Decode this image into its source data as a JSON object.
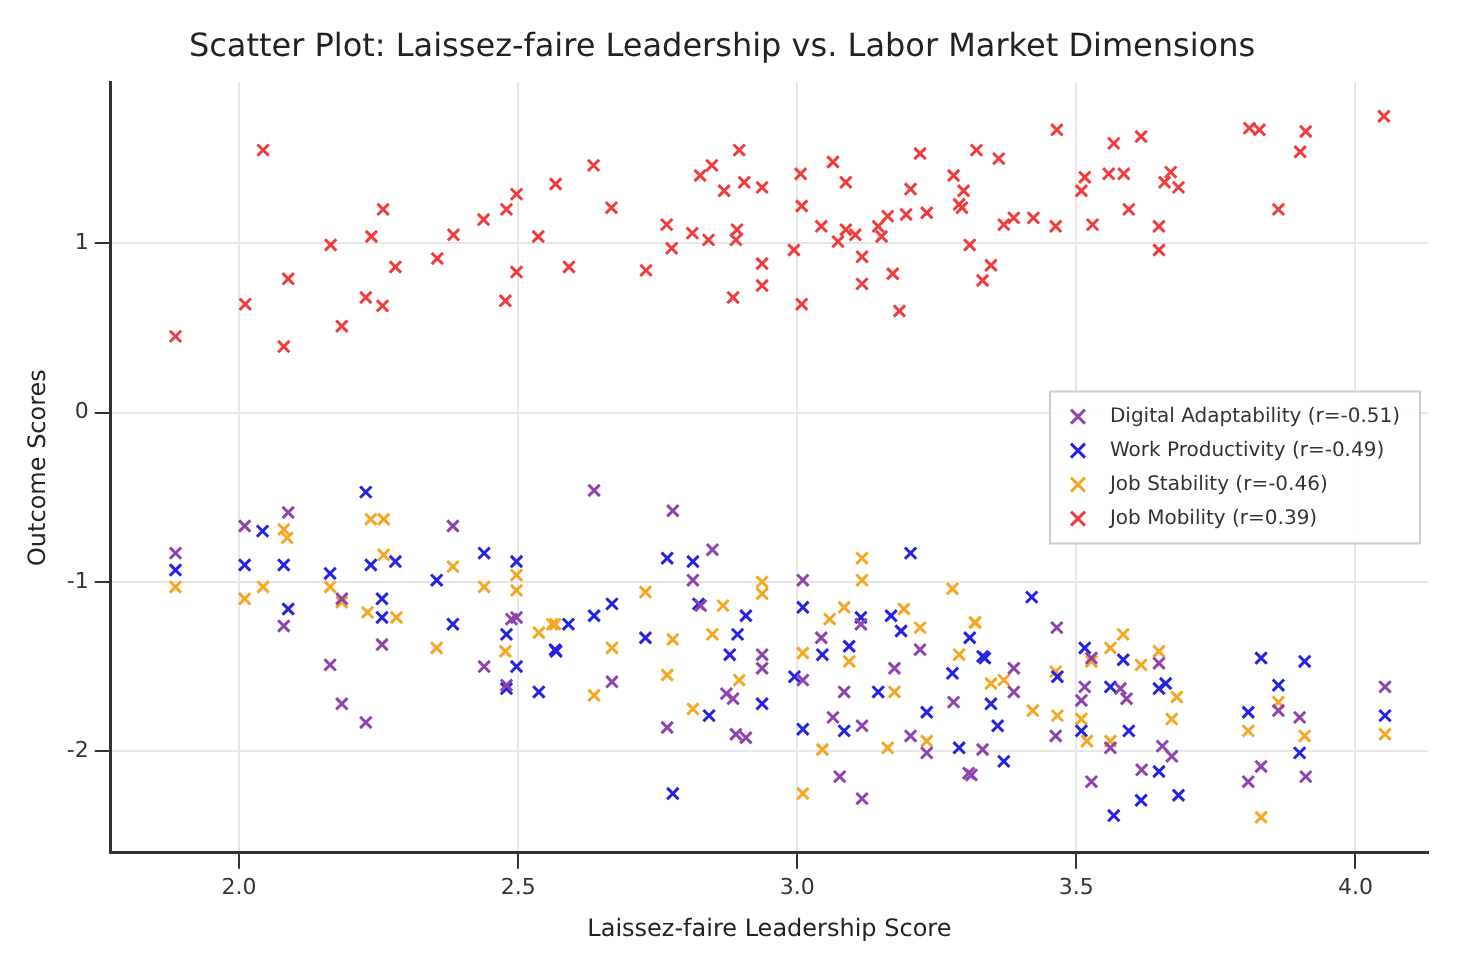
{
  "chart_data": {
    "type": "scatter",
    "title": "Scatter Plot: Laissez-faire Leadership vs. Labor Market Dimensions",
    "xlabel": "Laissez-faire Leadership Score",
    "ylabel": "Outcome Scores",
    "xlim": [
      1.77,
      4.13
    ],
    "ylim": [
      -2.6,
      1.95
    ],
    "xticks": [
      {
        "value": 2,
        "label": "2.0"
      },
      {
        "value": 2.5,
        "label": "2.5"
      },
      {
        "value": 3,
        "label": "3.0"
      },
      {
        "value": 3.5,
        "label": "3.5"
      },
      {
        "value": 4,
        "label": "4.0"
      }
    ],
    "yticks": [
      -2,
      -1,
      0,
      1
    ],
    "grid": true,
    "legend": "right",
    "marker": "cross",
    "series": [
      {
        "name": "Digital Adaptability (r=-0.51)",
        "color": "#8e44ad",
        "x": [
          1.886,
          2.01,
          2.088,
          2.08,
          2.184,
          2.163,
          2.184,
          2.227,
          2.256,
          2.383,
          2.439,
          2.479,
          2.488,
          2.497,
          2.636,
          2.777,
          2.848,
          2.813,
          2.827,
          2.668,
          2.767,
          2.873,
          2.89,
          2.908,
          2.937,
          2.937,
          2.885,
          3.01,
          3.01,
          3.043,
          3.064,
          3.084,
          3.116,
          3.114,
          3.076,
          3.116,
          3.174,
          3.203,
          3.232,
          3.28,
          3.307,
          3.22,
          3.465,
          3.388,
          3.388,
          3.332,
          3.312,
          3.463,
          3.515,
          3.509,
          3.527,
          3.561,
          3.527,
          3.59,
          3.579,
          3.617,
          3.654,
          3.671,
          3.648,
          3.808,
          3.831,
          3.862,
          3.9,
          3.911,
          4.053
        ],
        "values": [
          -0.83,
          -0.67,
          -0.59,
          -1.26,
          -1.1,
          -1.49,
          -1.72,
          -1.83,
          -1.37,
          -0.67,
          -1.5,
          -1.61,
          -1.22,
          -1.21,
          -0.46,
          -0.58,
          -0.81,
          -0.99,
          -1.14,
          -1.59,
          -1.86,
          -1.66,
          -1.9,
          -1.92,
          -1.43,
          -1.51,
          -1.69,
          -0.99,
          -1.58,
          -1.33,
          -1.8,
          -1.65,
          -1.85,
          -1.25,
          -2.15,
          -2.28,
          -1.51,
          -1.91,
          -2.01,
          -1.71,
          -2.13,
          -1.4,
          -1.27,
          -1.51,
          -1.65,
          -1.99,
          -2.14,
          -1.91,
          -1.62,
          -1.7,
          -1.45,
          -1.98,
          -2.18,
          -1.69,
          -1.63,
          -2.11,
          -1.97,
          -2.03,
          -1.48,
          -2.18,
          -2.09,
          -1.76,
          -1.8,
          -2.15,
          -1.62
        ]
      },
      {
        "name": "Work Productivity (r=-0.49)",
        "color": "#2323e0",
        "x": [
          1.886,
          2.01,
          2.042,
          2.08,
          2.088,
          2.163,
          2.227,
          2.236,
          2.256,
          2.28,
          2.256,
          2.354,
          2.383,
          2.439,
          2.497,
          2.479,
          2.497,
          2.479,
          2.537,
          2.568,
          2.767,
          2.813,
          2.668,
          2.636,
          2.59,
          2.566,
          2.728,
          2.823,
          2.893,
          2.908,
          2.879,
          2.937,
          2.842,
          2.777,
          3.01,
          2.995,
          3.01,
          3.045,
          3.093,
          3.114,
          3.168,
          3.186,
          3.203,
          3.145,
          3.084,
          3.232,
          3.278,
          3.29,
          3.309,
          3.336,
          3.42,
          3.332,
          3.347,
          3.359,
          3.37,
          3.466,
          3.515,
          3.509,
          3.561,
          3.584,
          3.594,
          3.567,
          3.616,
          3.648,
          3.66,
          3.648,
          3.683,
          3.808,
          3.831,
          3.862,
          3.909,
          3.9,
          4.053
        ],
        "values": [
          -0.93,
          -0.9,
          -0.7,
          -0.9,
          -1.16,
          -0.95,
          -0.47,
          -0.9,
          -1.1,
          -0.88,
          -1.21,
          -0.99,
          -1.25,
          -0.83,
          -0.88,
          -1.31,
          -1.5,
          -1.63,
          -1.65,
          -1.41,
          -0.86,
          -0.88,
          -1.13,
          -1.2,
          -1.25,
          -1.4,
          -1.33,
          -1.13,
          -1.31,
          -1.2,
          -1.43,
          -1.72,
          -1.79,
          -2.25,
          -1.15,
          -1.56,
          -1.87,
          -1.43,
          -1.38,
          -1.21,
          -1.2,
          -1.29,
          -0.83,
          -1.65,
          -1.88,
          -1.77,
          -1.54,
          -1.98,
          -1.33,
          -1.45,
          -1.09,
          -1.44,
          -1.72,
          -1.85,
          -2.06,
          -1.56,
          -1.39,
          -1.88,
          -1.62,
          -1.46,
          -1.88,
          -2.38,
          -2.29,
          -2.12,
          -1.6,
          -1.63,
          -2.26,
          -1.77,
          -1.45,
          -1.61,
          -1.47,
          -2.01,
          -1.79
        ]
      },
      {
        "name": "Job Stability (r=-0.46)",
        "color": "#f5a623",
        "x": [
          1.886,
          2.01,
          2.043,
          2.08,
          2.086,
          2.163,
          2.184,
          2.23,
          2.236,
          2.259,
          2.259,
          2.282,
          2.354,
          2.383,
          2.439,
          2.497,
          2.497,
          2.477,
          2.537,
          2.566,
          2.728,
          2.668,
          2.636,
          2.777,
          2.767,
          2.813,
          2.848,
          2.867,
          2.937,
          2.937,
          2.896,
          3.01,
          3.01,
          3.045,
          3.058,
          3.084,
          3.116,
          3.116,
          3.093,
          3.162,
          3.191,
          3.22,
          3.278,
          3.319,
          3.29,
          3.174,
          3.232,
          2.561,
          3.318,
          3.347,
          3.37,
          3.422,
          3.466,
          3.463,
          3.509,
          3.519,
          3.561,
          3.561,
          3.584,
          3.616,
          3.648,
          3.671,
          3.68,
          3.808,
          3.831,
          3.862,
          3.909,
          4.053,
          3.527
        ],
        "values": [
          -1.03,
          -1.1,
          -1.03,
          -0.69,
          -0.74,
          -1.03,
          -1.12,
          -1.18,
          -0.63,
          -0.63,
          -0.84,
          -1.21,
          -1.39,
          -0.91,
          -1.03,
          -0.96,
          -1.05,
          -1.41,
          -1.3,
          -1.25,
          -1.06,
          -1.39,
          -1.67,
          -1.34,
          -1.55,
          -1.75,
          -1.31,
          -1.14,
          -1.0,
          -1.07,
          -1.58,
          -1.42,
          -2.25,
          -1.99,
          -1.22,
          -1.15,
          -0.86,
          -0.99,
          -1.47,
          -1.98,
          -1.16,
          -1.27,
          -1.04,
          -1.24,
          -1.43,
          -1.65,
          -1.94,
          -1.25,
          -1.24,
          -1.6,
          -1.58,
          -1.76,
          -1.79,
          -1.53,
          -1.81,
          -1.94,
          -1.94,
          -1.39,
          -1.31,
          -1.49,
          -1.41,
          -1.81,
          -1.68,
          -1.88,
          -2.39,
          -1.71,
          -1.91,
          -1.9,
          -1.47
        ]
      },
      {
        "name": "Job Mobility (r=0.39)",
        "color": "#f03c3c",
        "x": [
          1.886,
          2.043,
          2.011,
          2.088,
          2.08,
          2.164,
          2.184,
          2.227,
          2.237,
          2.257,
          2.258,
          2.28,
          2.355,
          2.384,
          2.438,
          2.477,
          2.479,
          2.497,
          2.497,
          2.536,
          2.567,
          2.591,
          2.635,
          2.667,
          2.729,
          2.766,
          2.775,
          2.812,
          2.826,
          2.847,
          2.841,
          2.869,
          2.885,
          2.89,
          2.892,
          2.896,
          2.905,
          2.937,
          2.937,
          2.937,
          2.994,
          3.006,
          3.008,
          3.008,
          3.043,
          3.064,
          3.073,
          3.087,
          3.087,
          3.104,
          3.116,
          3.116,
          3.145,
          3.151,
          3.162,
          3.171,
          3.183,
          3.195,
          3.203,
          3.22,
          3.232,
          3.28,
          3.29,
          3.298,
          3.295,
          3.309,
          3.321,
          3.332,
          3.347,
          3.361,
          3.37,
          3.388,
          3.423,
          3.465,
          3.463,
          3.509,
          3.515,
          3.529,
          3.567,
          3.558,
          3.585,
          3.594,
          3.616,
          3.648,
          3.648,
          3.658,
          3.669,
          3.683,
          3.81,
          3.828,
          3.862,
          3.901,
          3.911,
          4.051
        ],
        "values": [
          0.45,
          1.55,
          0.64,
          0.79,
          0.39,
          0.99,
          0.51,
          0.68,
          1.04,
          0.63,
          1.2,
          0.86,
          0.91,
          1.05,
          1.14,
          0.66,
          1.2,
          1.29,
          0.83,
          1.04,
          1.35,
          0.86,
          1.46,
          1.21,
          0.84,
          1.11,
          0.97,
          1.06,
          1.4,
          1.46,
          1.02,
          1.31,
          0.68,
          1.02,
          1.08,
          1.55,
          1.36,
          1.33,
          0.88,
          0.75,
          0.96,
          1.41,
          1.22,
          0.64,
          1.1,
          1.48,
          1.01,
          1.36,
          1.08,
          1.05,
          0.92,
          0.76,
          1.1,
          1.04,
          1.16,
          0.82,
          0.6,
          1.17,
          1.32,
          1.53,
          1.18,
          1.4,
          1.23,
          1.31,
          1.21,
          0.99,
          1.55,
          0.78,
          0.87,
          1.5,
          1.11,
          1.15,
          1.15,
          1.67,
          1.1,
          1.31,
          1.39,
          1.11,
          1.59,
          1.41,
          1.41,
          1.2,
          1.63,
          1.1,
          0.96,
          1.36,
          1.42,
          1.33,
          1.68,
          1.67,
          1.2,
          1.54,
          1.66,
          1.75
        ]
      }
    ]
  }
}
